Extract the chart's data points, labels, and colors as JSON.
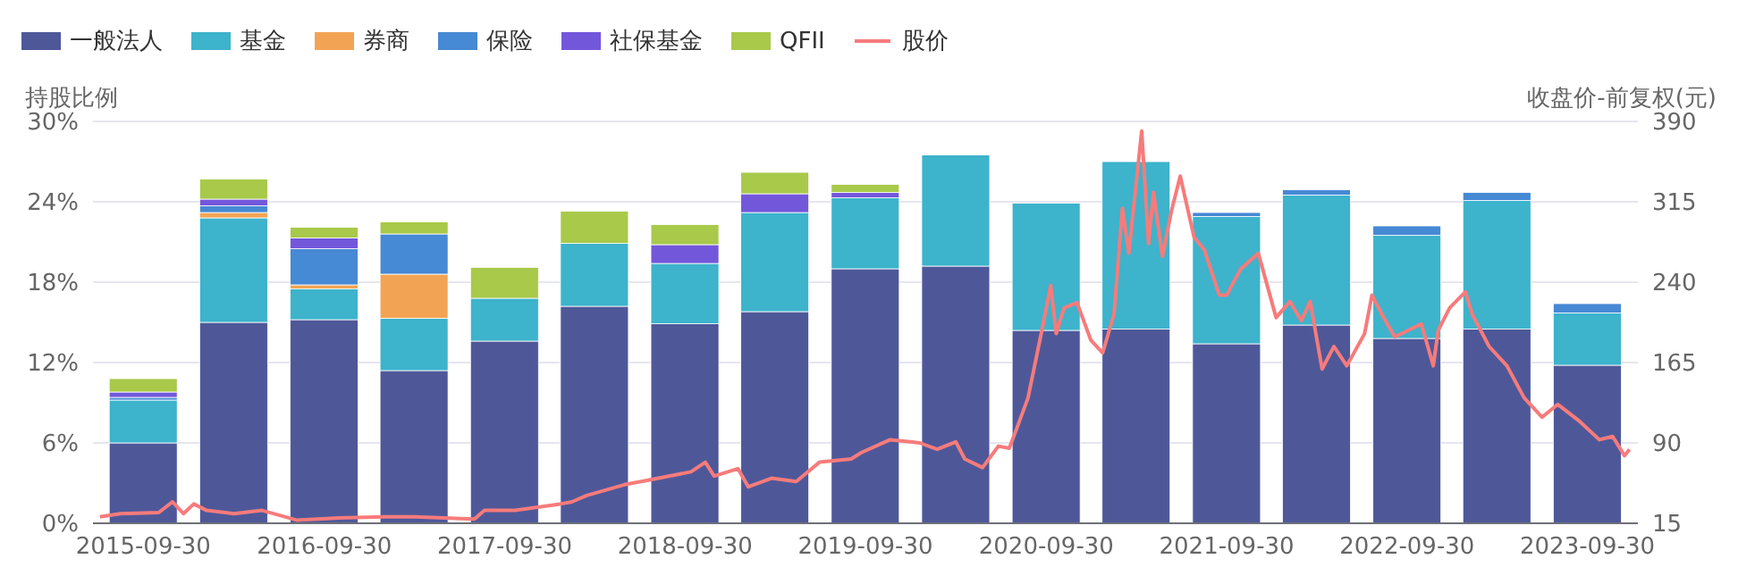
{
  "chart_data": {
    "type": "bar",
    "stacked": true,
    "ylabel": "持股比例",
    "y2label": "收盘价-前复权(元)",
    "x": [
      "2015-09-30",
      "2016-03-31",
      "2016-09-30",
      "2017-03-31",
      "2017-09-30",
      "2018-03-31",
      "2018-09-30",
      "2019-03-31",
      "2019-09-30",
      "2020-03-31",
      "2020-09-30",
      "2021-03-31",
      "2021-09-30",
      "2022-03-31",
      "2022-09-30",
      "2023-03-31",
      "2023-09-30"
    ],
    "xlim": [
      "2015-06-20",
      "2024-01-10"
    ],
    "xticks": [
      "2015-09-30",
      "2016-09-30",
      "2017-09-30",
      "2018-09-30",
      "2019-09-30",
      "2020-09-30",
      "2021-09-30",
      "2022-09-30",
      "2023-09-30"
    ],
    "ylim": [
      0,
      30
    ],
    "yticks": [
      {
        "value": 0,
        "label": "0%"
      },
      {
        "value": 6,
        "label": "6%"
      },
      {
        "value": 12,
        "label": "12%"
      },
      {
        "value": 18,
        "label": "18%"
      },
      {
        "value": 24,
        "label": "24%"
      },
      {
        "value": 30,
        "label": "30%"
      }
    ],
    "y2lim": [
      15,
      390
    ],
    "y2ticks": [
      15,
      90,
      165,
      240,
      315,
      390
    ],
    "grid": "y",
    "legend": "top left",
    "series": [
      {
        "name": "一般法人",
        "color": "#4e5899",
        "values": [
          6.0,
          15.0,
          15.2,
          11.4,
          13.6,
          16.2,
          14.9,
          15.8,
          19.0,
          19.2,
          14.4,
          14.5,
          13.4,
          14.8,
          13.8,
          14.5,
          11.8
        ]
      },
      {
        "name": "基金",
        "color": "#3db3cc",
        "values": [
          3.2,
          7.8,
          2.3,
          3.9,
          3.2,
          4.7,
          4.5,
          7.4,
          5.3,
          8.3,
          9.5,
          12.5,
          9.5,
          9.7,
          7.7,
          9.6,
          3.9
        ]
      },
      {
        "name": "券商",
        "color": "#f2a454",
        "values": [
          0,
          0.4,
          0.3,
          3.3,
          0,
          0,
          0,
          0,
          0,
          0,
          0,
          0,
          0,
          0,
          0,
          0,
          0
        ]
      },
      {
        "name": "保险",
        "color": "#4689d4",
        "values": [
          0.2,
          0.5,
          2.7,
          3.0,
          0,
          0,
          0,
          0,
          0,
          0,
          0,
          0,
          0.3,
          0.4,
          0.7,
          0.6,
          0.7
        ]
      },
      {
        "name": "社保基金",
        "color": "#7357db",
        "values": [
          0.4,
          0.5,
          0.8,
          0,
          0,
          0,
          1.4,
          1.4,
          0.4,
          0,
          0,
          0,
          0,
          0,
          0,
          0,
          0
        ]
      },
      {
        "name": "QFII",
        "color": "#a8c94a",
        "values": [
          1.0,
          1.5,
          0.8,
          0.9,
          2.3,
          2.4,
          1.5,
          1.6,
          0.6,
          0,
          0,
          0,
          0,
          0,
          0,
          0,
          0
        ]
      },
      {
        "name": "股价",
        "type": "line",
        "axis": "y2",
        "color": "#f77b7b",
        "marker": "none",
        "x": [
          "2015-07-04",
          "2015-08-15",
          "2015-10-31",
          "2015-11-28",
          "2015-12-20",
          "2016-01-10",
          "2016-02-05",
          "2016-03-31",
          "2016-05-27",
          "2016-08-05",
          "2016-10-30",
          "2017-01-31",
          "2017-03-31",
          "2017-07-31",
          "2017-08-20",
          "2017-10-21",
          "2018-01-20",
          "2018-02-13",
          "2018-03-15",
          "2018-05-30",
          "2018-07-15",
          "2018-10-12",
          "2018-11-10",
          "2018-11-28",
          "2019-01-15",
          "2019-02-05",
          "2019-03-24",
          "2019-05-13",
          "2019-06-29",
          "2019-09-01",
          "2019-09-22",
          "2019-11-19",
          "2020-01-18",
          "2020-02-22",
          "2020-03-31",
          "2020-04-18",
          "2020-05-24",
          "2020-06-25",
          "2020-07-17",
          "2020-07-31",
          "2020-08-24",
          "2020-09-21",
          "2020-10-09",
          "2020-10-20",
          "2020-11-05",
          "2020-12-01",
          "2020-12-29",
          "2021-01-22",
          "2021-02-14",
          "2021-03-03",
          "2021-03-16",
          "2021-04-11",
          "2021-04-25",
          "2021-05-05",
          "2021-05-23",
          "2021-06-10",
          "2021-06-28",
          "2021-07-26",
          "2021-08-16",
          "2021-09-15",
          "2021-09-30",
          "2021-10-28",
          "2021-12-03",
          "2022-01-08",
          "2022-02-05",
          "2022-02-28",
          "2022-03-18",
          "2022-04-11",
          "2022-05-05",
          "2022-05-31",
          "2022-07-06",
          "2022-07-21",
          "2022-08-10",
          "2022-09-05",
          "2022-10-29",
          "2022-11-22",
          "2022-12-02",
          "2022-12-25",
          "2023-01-26",
          "2023-02-09",
          "2023-03-15",
          "2023-04-20",
          "2023-05-25",
          "2023-06-30",
          "2023-08-01",
          "2023-09-12",
          "2023-10-24",
          "2023-11-20",
          "2023-12-14",
          "2023-12-24"
        ],
        "values": [
          21,
          24,
          25,
          35,
          24,
          33,
          27,
          24,
          27,
          18,
          20,
          21,
          21,
          19,
          27,
          27,
          33,
          35,
          41,
          51,
          55,
          63,
          72,
          59,
          66,
          49,
          57,
          54,
          72,
          75,
          81,
          93,
          90,
          84,
          91,
          75,
          67,
          87,
          85,
          102,
          132,
          195,
          237,
          192,
          216,
          221,
          186,
          174,
          210,
          309,
          267,
          381,
          276,
          324,
          264,
          306,
          339,
          282,
          270,
          228,
          228,
          252,
          267,
          207,
          222,
          204,
          222,
          159,
          180,
          162,
          192,
          228,
          210,
          189,
          201,
          162,
          195,
          216,
          231,
          210,
          180,
          162,
          132,
          114,
          126,
          111,
          93,
          96,
          78,
          84
        ]
      }
    ]
  }
}
